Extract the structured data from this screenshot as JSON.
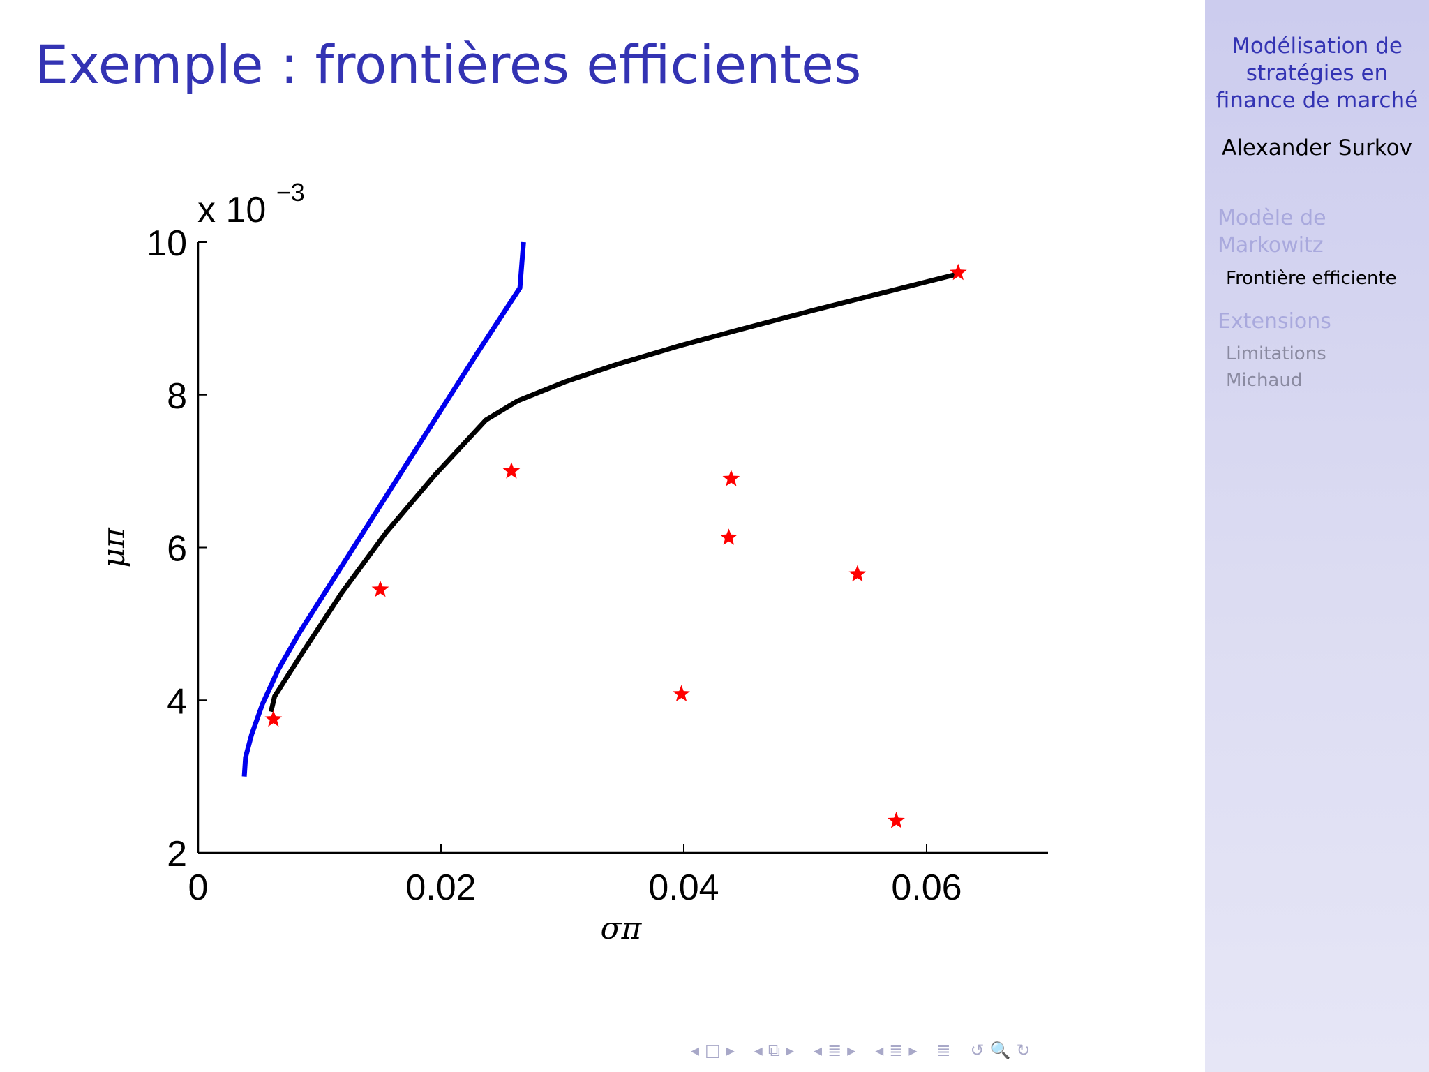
{
  "slide": {
    "title": "Exemple : frontières efficientes"
  },
  "sidebar": {
    "heading": [
      "Modélisation de",
      "stratégies en",
      "finance de marché"
    ],
    "author": "Alexander Surkov",
    "sections": [
      {
        "label_lines": [
          "Modèle de",
          "Markowitz"
        ],
        "state": "inactive",
        "items": [
          {
            "label": "Frontière efficiente",
            "state": "active"
          }
        ]
      },
      {
        "label_lines": [
          "Extensions"
        ],
        "state": "inactive",
        "items": [
          {
            "label": "Limitations",
            "state": "inactive"
          },
          {
            "label": "Michaud",
            "state": "inactive"
          }
        ]
      }
    ]
  },
  "nav": {
    "glyphs": [
      "◂",
      "□",
      "▸",
      "◂",
      "⧉",
      "▸",
      "◂",
      "≣",
      "▸",
      "◂",
      "≣",
      "▸",
      "≣",
      "↺",
      "🔍",
      "↻"
    ]
  },
  "chart_data": {
    "type": "line",
    "xlabel": "σπ",
    "ylabel": "μπ",
    "y_multiplier_label": "x 10",
    "y_multiplier_exponent": "−3",
    "xlim": [
      0,
      0.07
    ],
    "ylim": [
      2,
      10
    ],
    "xticks": [
      0,
      0.02,
      0.04,
      0.06
    ],
    "xtick_labels": [
      "0",
      "0.02",
      "0.04",
      "0.06"
    ],
    "yticks": [
      2,
      4,
      6,
      8,
      10
    ],
    "ytick_labels": [
      "2",
      "4",
      "6",
      "8",
      "10"
    ],
    "grid": false,
    "series": [
      {
        "kind": "line",
        "color": "#0000ee",
        "points": [
          [
            0.0038,
            3.0
          ],
          [
            0.0039,
            3.25
          ],
          [
            0.0044,
            3.55
          ],
          [
            0.0053,
            3.95
          ],
          [
            0.0066,
            4.4
          ],
          [
            0.0084,
            4.9
          ],
          [
            0.0112,
            5.6
          ],
          [
            0.0148,
            6.5
          ],
          [
            0.0188,
            7.5
          ],
          [
            0.0228,
            8.5
          ],
          [
            0.0265,
            9.4
          ],
          [
            0.0268,
            10.0
          ]
        ]
      },
      {
        "kind": "line",
        "color": "#000000",
        "points": [
          [
            0.006,
            3.85
          ],
          [
            0.0063,
            4.05
          ],
          [
            0.0085,
            4.6
          ],
          [
            0.0118,
            5.4
          ],
          [
            0.0155,
            6.2
          ],
          [
            0.0195,
            6.95
          ],
          [
            0.0237,
            7.67
          ],
          [
            0.0263,
            7.92
          ],
          [
            0.0302,
            8.17
          ],
          [
            0.0345,
            8.4
          ],
          [
            0.0398,
            8.65
          ],
          [
            0.0445,
            8.85
          ],
          [
            0.0505,
            9.1
          ],
          [
            0.0625,
            9.58
          ]
        ]
      },
      {
        "kind": "scatter",
        "color": "#ff0000",
        "marker": "star",
        "points": [
          [
            0.0062,
            3.75
          ],
          [
            0.015,
            5.45
          ],
          [
            0.0258,
            7.0
          ],
          [
            0.0398,
            4.08
          ],
          [
            0.0437,
            6.13
          ],
          [
            0.0439,
            6.9
          ],
          [
            0.0543,
            5.65
          ],
          [
            0.0575,
            2.42
          ],
          [
            0.0626,
            9.6
          ]
        ]
      }
    ]
  }
}
